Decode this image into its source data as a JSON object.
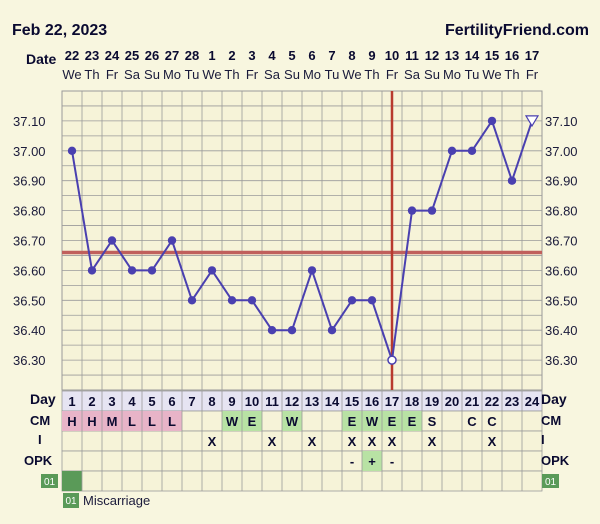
{
  "header": {
    "date": "Feb 22, 2023",
    "site": "FertilityFriend.com"
  },
  "row_labels": {
    "date": "Date",
    "day": "Day",
    "cm": "CM",
    "intercourse": "I",
    "opk": "OPK"
  },
  "legend": {
    "badge": "01",
    "text": "Miscarriage"
  },
  "colors": {
    "line": "#4a40b0",
    "coverline": "#c0605c",
    "ovulation": "#b83a2e",
    "grid": "#9a9a9a",
    "plot_bg": "#f6f3d8",
    "cm_pink": "#e8b4c8",
    "cm_green": "#b8e2a4",
    "badge": "#5a9a58"
  },
  "chart_data": {
    "type": "line",
    "title": "",
    "ylim": [
      36.2,
      37.2
    ],
    "yticks": [
      "37.10",
      "37.00",
      "36.90",
      "36.80",
      "36.70",
      "36.60",
      "36.50",
      "36.40",
      "36.30"
    ],
    "coverline": 36.66,
    "ovulation_day": 17,
    "dates": [
      "22",
      "23",
      "24",
      "25",
      "26",
      "27",
      "28",
      "1",
      "2",
      "3",
      "4",
      "5",
      "6",
      "7",
      "8",
      "9",
      "10",
      "11",
      "12",
      "13",
      "14",
      "15",
      "16",
      "17"
    ],
    "weekdays": [
      "We",
      "Th",
      "Fr",
      "Sa",
      "Su",
      "Mo",
      "Tu",
      "We",
      "Th",
      "Fr",
      "Sa",
      "Su",
      "Mo",
      "Tu",
      "We",
      "Th",
      "Fr",
      "Sa",
      "Su",
      "Mo",
      "Tu",
      "We",
      "Th",
      "Fr"
    ],
    "days": [
      "1",
      "2",
      "3",
      "4",
      "5",
      "6",
      "7",
      "8",
      "9",
      "10",
      "11",
      "12",
      "13",
      "14",
      "15",
      "16",
      "17",
      "18",
      "19",
      "20",
      "21",
      "22",
      "23",
      "24"
    ],
    "temps": [
      37.0,
      36.6,
      36.7,
      36.6,
      36.6,
      36.7,
      36.5,
      36.6,
      36.5,
      36.5,
      36.4,
      36.4,
      36.6,
      36.4,
      36.5,
      36.5,
      36.3,
      36.8,
      36.8,
      37.0,
      37.0,
      37.1,
      36.9,
      37.1
    ],
    "open_marker_day": 24,
    "cm": [
      "H",
      "H",
      "M",
      "L",
      "L",
      "L",
      "",
      "",
      "W",
      "E",
      "",
      "W",
      "",
      "",
      "E",
      "W",
      "E",
      "E",
      "S",
      "",
      "C",
      "C",
      "",
      ""
    ],
    "cm_colors": [
      "pink",
      "pink",
      "pink",
      "pink",
      "pink",
      "pink",
      "",
      "",
      "green",
      "green",
      "",
      "green",
      "",
      "",
      "green",
      "green",
      "green",
      "green",
      "",
      "",
      "",
      "",
      "",
      ""
    ],
    "intercourse": [
      "",
      "",
      "",
      "",
      "",
      "",
      "",
      "X",
      "",
      "",
      "X",
      "",
      "X",
      "",
      "X",
      "X",
      "X",
      "",
      "X",
      "",
      "",
      "X",
      "",
      ""
    ],
    "opk": [
      "",
      "",
      "",
      "",
      "",
      "",
      "",
      "",
      "",
      "",
      "",
      "",
      "",
      "",
      "-",
      "+",
      "-",
      "",
      "",
      "",
      "",
      "",
      "",
      ""
    ],
    "opk_highlight_day": 16,
    "miscarriage_badge_day": 1
  }
}
